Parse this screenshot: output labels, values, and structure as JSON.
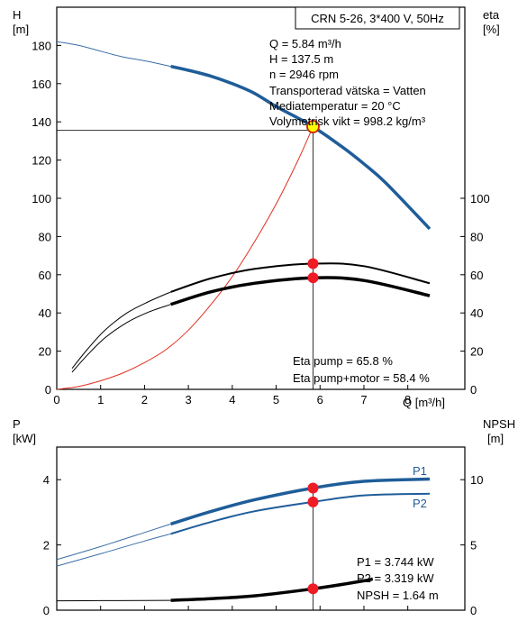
{
  "title": "CRN 5-26, 3*400 V, 50Hz",
  "colors": {
    "blue": "#1f5d99",
    "thin_blue": "#3a6ea5",
    "system": "#e03020",
    "marker": "#ee1c25",
    "op_fill": "#ffff00",
    "op_stroke": "#cc2200"
  },
  "chart_data": [
    {
      "type": "line",
      "panel": "upper",
      "xlabel": "Q [m³/h]",
      "y_left_label": [
        "H",
        "[m]"
      ],
      "y_right_label": [
        "eta",
        "[%]"
      ],
      "xlim": [
        0,
        9.3
      ],
      "x_ticks": [
        0,
        1,
        2,
        3,
        4,
        5,
        6,
        7,
        8
      ],
      "ylim_left": [
        0,
        200
      ],
      "y_left_ticks": [
        0,
        20,
        40,
        60,
        80,
        100,
        120,
        140,
        160,
        180
      ],
      "ylim_right": [
        0,
        200
      ],
      "y_right_ticks": [
        0,
        20,
        40,
        60,
        80,
        100
      ],
      "grid": false,
      "series": [
        {
          "role": "head-extrapolated",
          "x": [
            0,
            0.5,
            1,
            1.5,
            2,
            2.6
          ],
          "y": [
            182,
            180,
            177,
            174,
            172,
            169
          ]
        },
        {
          "role": "head",
          "x": [
            2.6,
            3,
            3.5,
            4,
            4.5,
            5,
            5.5,
            5.84,
            6.5,
            7,
            7.5,
            8.5
          ],
          "y": [
            169,
            167,
            164,
            160,
            155,
            148,
            142,
            137.5,
            127,
            118,
            108,
            84
          ]
        },
        {
          "role": "system-curve",
          "x": [
            0,
            0.5,
            1,
            1.5,
            2,
            2.5,
            3,
            3.5,
            4,
            4.5,
            5,
            5.5,
            5.84
          ],
          "y": [
            0,
            1.5,
            4.5,
            8.5,
            14,
            21,
            31,
            44,
            59,
            77,
            97,
            120,
            137.5
          ]
        },
        {
          "role": "eta-pump-extrapolated",
          "x": [
            0.35,
            0.7,
            1.1,
            1.6,
            2.1,
            2.6
          ],
          "y": [
            11,
            21,
            31,
            40,
            46,
            51
          ]
        },
        {
          "role": "eta-pump",
          "x": [
            2.6,
            3.5,
            4.5,
            5.84,
            7,
            8.5
          ],
          "y": [
            51,
            58,
            63,
            65.8,
            64.5,
            55.5
          ]
        },
        {
          "role": "eta-pump-motor-extrapolated",
          "x": [
            0.35,
            0.7,
            1.1,
            1.6,
            2.1,
            2.6
          ],
          "y": [
            9,
            18,
            27,
            35,
            40.5,
            44.5
          ]
        },
        {
          "role": "eta-pump-motor",
          "x": [
            2.6,
            3.5,
            4.5,
            5.84,
            7,
            8.5
          ],
          "y": [
            44.5,
            51,
            55.5,
            58.4,
            57,
            49
          ]
        }
      ],
      "operating_point": {
        "x": 5.84,
        "y": 137.5
      },
      "markers": [
        {
          "x": 5.84,
          "y": 65.8
        },
        {
          "x": 5.84,
          "y": 58.4
        }
      ],
      "info_lines": [
        "Q = 5.84 m³/h",
        "H = 137.5 m",
        "n = 2946 rpm",
        "Transporterad vätska = Vatten",
        "Mediatemperatur = 20 °C",
        "Volymetrisk vikt = 998.2 kg/m³"
      ],
      "eta_lines": [
        "Eta pump = 65.8 %",
        "Eta pump+motor = 58.4 %"
      ]
    },
    {
      "type": "line",
      "panel": "lower",
      "xlim": [
        0,
        9.3
      ],
      "y_left_label": [
        "P",
        "[kW]"
      ],
      "y_right_label": [
        "NPSH",
        "[m]"
      ],
      "ylim_left": [
        0,
        5
      ],
      "y_left_ticks": [
        0,
        2,
        4
      ],
      "ylim_right": [
        0,
        12.5
      ],
      "y_right_ticks": [
        0,
        5,
        10
      ],
      "grid": false,
      "series": [
        {
          "name": "P1",
          "role": "p1-extrapolated",
          "x": [
            0,
            1,
            2,
            2.6
          ],
          "y": [
            1.55,
            1.95,
            2.38,
            2.64
          ]
        },
        {
          "name": "P1",
          "role": "p1",
          "x": [
            2.6,
            3.5,
            4.5,
            5.84,
            7,
            8.5
          ],
          "y": [
            2.64,
            3.02,
            3.38,
            3.744,
            3.95,
            4.02
          ]
        },
        {
          "name": "P2",
          "role": "p2-extrapolated",
          "x": [
            0,
            1,
            2,
            2.6
          ],
          "y": [
            1.35,
            1.73,
            2.12,
            2.34
          ]
        },
        {
          "name": "P2",
          "role": "p2",
          "x": [
            2.6,
            3.5,
            4.5,
            5.84,
            7,
            8.5
          ],
          "y": [
            2.34,
            2.7,
            3.03,
            3.319,
            3.52,
            3.57
          ]
        },
        {
          "role": "npsh-extrapolated",
          "x": [
            0,
            1,
            2,
            2.6
          ],
          "y": [
            0.72,
            0.73,
            0.74,
            0.75
          ]
        },
        {
          "role": "npsh",
          "x": [
            2.6,
            3.5,
            4.5,
            5.84,
            7,
            7.2
          ],
          "y": [
            0.75,
            0.88,
            1.1,
            1.64,
            2.25,
            2.4
          ]
        }
      ],
      "markers": [
        {
          "axis": "left",
          "x": 5.84,
          "y": 3.744
        },
        {
          "axis": "left",
          "x": 5.84,
          "y": 3.319
        },
        {
          "axis": "right",
          "x": 5.84,
          "y": 1.64
        }
      ],
      "series_labels": [
        "P1",
        "P2"
      ],
      "info_lines": [
        "P1 = 3.744 kW",
        "P2 = 3.319 kW",
        "NPSH = 1.64 m"
      ]
    }
  ]
}
